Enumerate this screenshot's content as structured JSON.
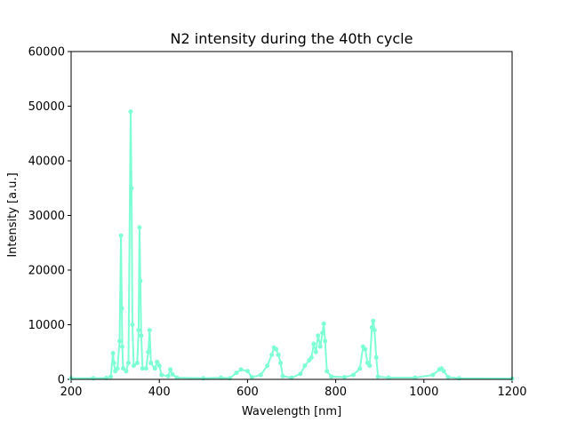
{
  "chart_data": {
    "type": "line",
    "title": "N2 intensity during the 40th cycle",
    "x_label": "Wavelength [nm]",
    "y_label": "Intensity [a.u.]",
    "color": "#7fffd4",
    "markers": true,
    "x": [
      200,
      250,
      280,
      290,
      295,
      297,
      300,
      305,
      310,
      313,
      315,
      316,
      318,
      325,
      330,
      335,
      337,
      339,
      342,
      350,
      353,
      355,
      357,
      359,
      362,
      370,
      375,
      378,
      381,
      390,
      395,
      400,
      405,
      420,
      425,
      430,
      440,
      500,
      540,
      560,
      575,
      585,
      600,
      610,
      630,
      645,
      655,
      660,
      665,
      670,
      675,
      680,
      700,
      720,
      730,
      740,
      745,
      750,
      755,
      760,
      765,
      770,
      773,
      776,
      780,
      790,
      820,
      840,
      855,
      862,
      867,
      872,
      877,
      882,
      885,
      888,
      892,
      896,
      920,
      980,
      1020,
      1035,
      1040,
      1045,
      1055,
      1080,
      1200
    ],
    "values": [
      200,
      200,
      250,
      500,
      4800,
      3000,
      1500,
      2000,
      7000,
      26300,
      13000,
      6000,
      2000,
      1500,
      3000,
      49000,
      35000,
      10000,
      2500,
      3000,
      9000,
      27800,
      18000,
      8000,
      2000,
      2000,
      5000,
      9000,
      3000,
      2000,
      3200,
      2500,
      800,
      600,
      1800,
      900,
      300,
      200,
      300,
      200,
      1200,
      1800,
      1500,
      400,
      800,
      2500,
      4500,
      5800,
      5500,
      4500,
      3000,
      600,
      300,
      1000,
      2500,
      3500,
      4000,
      6500,
      5000,
      8000,
      6000,
      8500,
      10200,
      7000,
      1500,
      500,
      400,
      800,
      2000,
      6000,
      5500,
      3000,
      2500,
      9500,
      10700,
      9000,
      4000,
      500,
      300,
      300,
      800,
      1800,
      2000,
      1500,
      400,
      200,
      150
    ],
    "xlim": [
      200,
      1200
    ],
    "xticks": [
      200,
      400,
      600,
      800,
      1000,
      1200
    ],
    "ylim": [
      0,
      60000
    ],
    "yticks": [
      0,
      10000,
      20000,
      30000,
      40000,
      50000,
      60000
    ]
  }
}
